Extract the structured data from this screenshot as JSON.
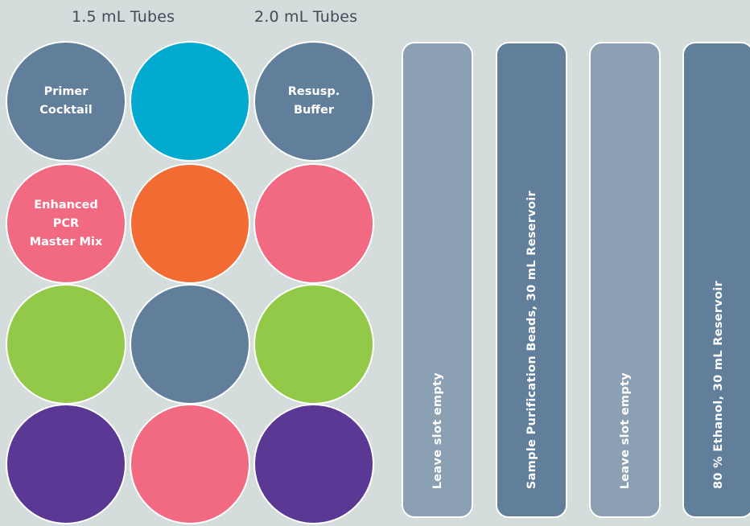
{
  "colors": {
    "background": "#d4dcdc",
    "slate_blue": "#617e9b",
    "light_slate": "#8ca0b4",
    "cyan": "#03aacf",
    "pink": "#f26a82",
    "orange": "#f26b33",
    "lime_green": "#93c949",
    "purple": "#5b3893",
    "outline": "#ffffff"
  },
  "headers": {
    "tubes_1_5": "1.5 mL Tubes",
    "tubes_2_0": "2.0 mL Tubes"
  },
  "tubes": [
    {
      "row": 1,
      "column": 1,
      "color": "#617e9b",
      "label": "Primer\nCocktail"
    },
    {
      "row": 1,
      "column": 2,
      "color": "#03aacf",
      "label": ""
    },
    {
      "row": 1,
      "column": 3,
      "color": "#617e9b",
      "label": "Resusp.\nBuffer"
    },
    {
      "row": 2,
      "column": 1,
      "color": "#f26a82",
      "label": "Enhanced\nPCR\nMaster Mix"
    },
    {
      "row": 2,
      "column": 2,
      "color": "#f26b33",
      "label": ""
    },
    {
      "row": 2,
      "column": 3,
      "color": "#f26a82",
      "label": ""
    },
    {
      "row": 3,
      "column": 1,
      "color": "#93c949",
      "label": ""
    },
    {
      "row": 3,
      "column": 2,
      "color": "#617e9b",
      "label": ""
    },
    {
      "row": 3,
      "column": 3,
      "color": "#93c949",
      "label": ""
    },
    {
      "row": 4,
      "column": 1,
      "color": "#5b3893",
      "label": ""
    },
    {
      "row": 4,
      "column": 2,
      "color": "#f26a82",
      "label": ""
    },
    {
      "row": 4,
      "column": 3,
      "color": "#5b3893",
      "label": ""
    }
  ],
  "reservoirs": [
    {
      "color": "#8ca0b4",
      "label": "Leave slot empty"
    },
    {
      "color": "#617e9b",
      "label": "Sample Purification Beads, 30 mL Reservoir"
    },
    {
      "color": "#8ca0b4",
      "label": "Leave slot empty"
    },
    {
      "color": "#617e9b",
      "label": "80 % Ethanol, 30 mL Reservoir"
    }
  ]
}
